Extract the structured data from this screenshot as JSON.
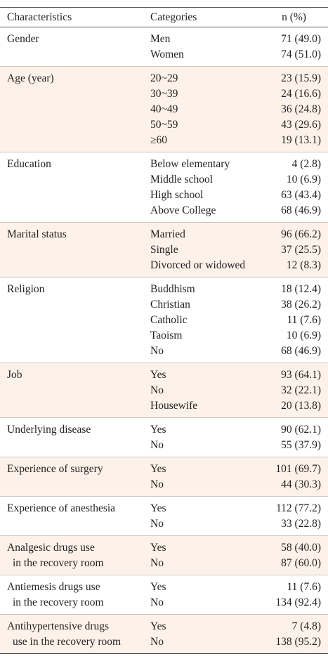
{
  "header": [
    "Characteristics",
    "Categories",
    "n (%)"
  ],
  "groups": [
    {
      "characteristic": [
        "Gender"
      ],
      "rows": [
        {
          "category": "Men",
          "n": "71 (49.0)"
        },
        {
          "category": "Women",
          "n": "74 (51.0)"
        }
      ]
    },
    {
      "characteristic": [
        "Age (year)"
      ],
      "rows": [
        {
          "category": "20~29",
          "n": "23 (15.9)"
        },
        {
          "category": "30~39",
          "n": "24 (16.6)"
        },
        {
          "category": "40~49",
          "n": "36 (24.8)"
        },
        {
          "category": "50~59",
          "n": "43 (29.6)"
        },
        {
          "category": "≥60",
          "n": "19 (13.1)"
        }
      ]
    },
    {
      "characteristic": [
        "Education"
      ],
      "rows": [
        {
          "category": "Below elementary",
          "n": "4 (2.8)"
        },
        {
          "category": "Middle school",
          "n": "10 (6.9)"
        },
        {
          "category": "High school",
          "n": "63 (43.4)"
        },
        {
          "category": "Above College",
          "n": "68 (46.9)"
        }
      ]
    },
    {
      "characteristic": [
        "Marital status"
      ],
      "rows": [
        {
          "category": "Married",
          "n": "96 (66.2)"
        },
        {
          "category": "Single",
          "n": "37 (25.5)"
        },
        {
          "category": "Divorced or widowed",
          "n": "12 (8.3)"
        }
      ]
    },
    {
      "characteristic": [
        "Religion"
      ],
      "rows": [
        {
          "category": "Buddhism",
          "n": "18 (12.4)"
        },
        {
          "category": "Christian",
          "n": "38 (26.2)"
        },
        {
          "category": "Catholic",
          "n": "11 (7.6)"
        },
        {
          "category": "Taoism",
          "n": "10 (6.9)"
        },
        {
          "category": "No",
          "n": "68 (46.9)"
        }
      ]
    },
    {
      "characteristic": [
        "Job"
      ],
      "rows": [
        {
          "category": "Yes",
          "n": "93 (64.1)"
        },
        {
          "category": "No",
          "n": "32 (22.1)"
        },
        {
          "category": "Housewife",
          "n": "20 (13.8)"
        }
      ]
    },
    {
      "characteristic": [
        "Underlying disease"
      ],
      "rows": [
        {
          "category": "Yes",
          "n": "90 (62.1)"
        },
        {
          "category": "No",
          "n": "55 (37.9)"
        }
      ]
    },
    {
      "characteristic": [
        "Experience of surgery"
      ],
      "rows": [
        {
          "category": "Yes",
          "n": "101 (69.7)"
        },
        {
          "category": "No",
          "n": "44 (30.3)"
        }
      ]
    },
    {
      "characteristic": [
        "Experience of anesthesia"
      ],
      "rows": [
        {
          "category": "Yes",
          "n": "112 (77.2)"
        },
        {
          "category": "No",
          "n": "33 (22.8)"
        }
      ]
    },
    {
      "characteristic": [
        "Analgesic drugs use",
        "in the recovery room"
      ],
      "rows": [
        {
          "category": "Yes",
          "n": "58 (40.0)"
        },
        {
          "category": "No",
          "n": "87 (60.0)"
        }
      ]
    },
    {
      "characteristic": [
        "Antiemesis drugs use",
        "in the recovery room"
      ],
      "rows": [
        {
          "category": "Yes",
          "n": "11 (7.6)"
        },
        {
          "category": "No",
          "n": "134 (92.4)"
        }
      ]
    },
    {
      "characteristic": [
        "Antihypertensive drugs",
        "use in the recovery room"
      ],
      "rows": [
        {
          "category": "Yes",
          "n": "7 (4.8)"
        },
        {
          "category": "No",
          "n": "138 (95.2)"
        }
      ]
    }
  ]
}
